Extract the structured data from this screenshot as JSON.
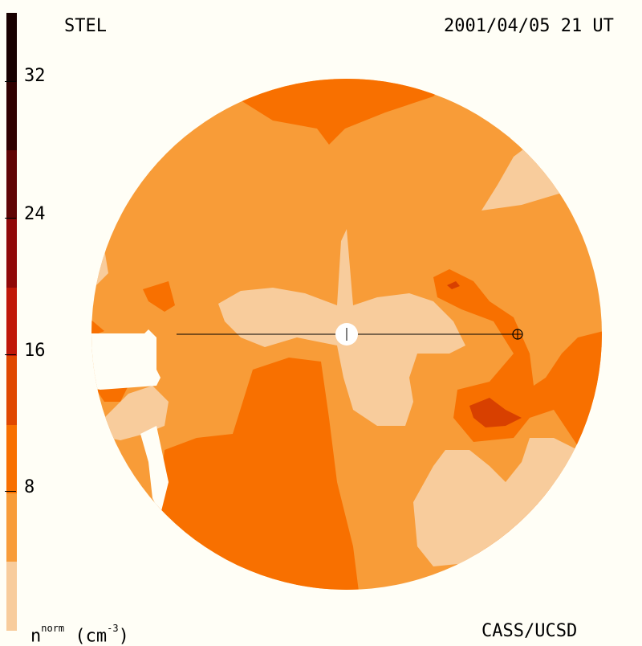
{
  "header": {
    "instrument": "STEL",
    "datetime": "2001/04/05 21 UT"
  },
  "footer": {
    "institution": "CASS/UCSD",
    "quantity_base": "n",
    "quantity_sup": "norm",
    "quantity_unit_open": " (cm",
    "quantity_unit_sup": "-3",
    "quantity_unit_close": ")"
  },
  "colorbar": {
    "ticks": [
      "8",
      "16",
      "24",
      "32"
    ],
    "colors": [
      "#f8cc9c",
      "#f89c38",
      "#f87000",
      "#e04800",
      "#c01808",
      "#900808",
      "#600404",
      "#300000",
      "#180000"
    ]
  },
  "colors": {
    "background": "#fffef6",
    "level_1": "#f8cc9c",
    "level_2": "#f89c38",
    "level_3": "#f87000",
    "level_4": "#d84000",
    "level_5": "#b01808",
    "sun": "#ffffff"
  }
}
